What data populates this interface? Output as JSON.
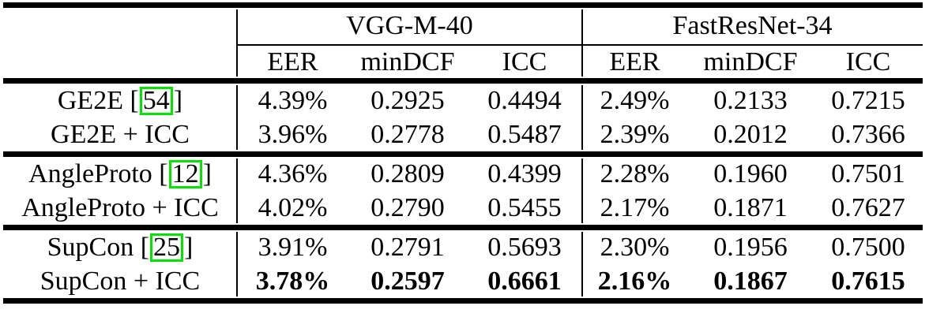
{
  "colors": {
    "background": "#FFFFFF",
    "text": "#000000",
    "rule": "#000000",
    "cite_box_border": "#00E400"
  },
  "table": {
    "column_groups": [
      {
        "label": "VGG-M-40",
        "sub_headers": [
          "EER",
          "minDCF",
          "ICC"
        ]
      },
      {
        "label": "FastResNet-34",
        "sub_headers": [
          "EER",
          "minDCF",
          "ICC"
        ]
      }
    ],
    "sections": [
      {
        "rows": [
          {
            "label_prefix": "GE2E [",
            "cite": "54",
            "label_suffix": "]",
            "values_bold": false,
            "values": [
              "4.39%",
              "0.2925",
              "0.4494",
              "2.49%",
              "0.2133",
              "0.7215"
            ]
          },
          {
            "label_prefix": "GE2E + ICC",
            "cite": null,
            "label_suffix": "",
            "values_bold": false,
            "values": [
              "3.96%",
              "0.2778",
              "0.5487",
              "2.39%",
              "0.2012",
              "0.7366"
            ]
          }
        ]
      },
      {
        "rows": [
          {
            "label_prefix": "AngleProto [",
            "cite": "12",
            "label_suffix": "]",
            "values_bold": false,
            "values": [
              "4.36%",
              "0.2809",
              "0.4399",
              "2.28%",
              "0.1960",
              "0.7501"
            ]
          },
          {
            "label_prefix": "AngleProto + ICC",
            "cite": null,
            "label_suffix": "",
            "values_bold": false,
            "values": [
              "4.02%",
              "0.2790",
              "0.5455",
              "2.17%",
              "0.1871",
              "0.7627"
            ]
          }
        ]
      },
      {
        "rows": [
          {
            "label_prefix": "SupCon [",
            "cite": "25",
            "label_suffix": "]",
            "values_bold": false,
            "values": [
              "3.91%",
              "0.2791",
              "0.5693",
              "2.30%",
              "0.1956",
              "0.7500"
            ]
          },
          {
            "label_prefix": "SupCon + ICC",
            "cite": null,
            "label_suffix": "",
            "values_bold": true,
            "values": [
              "3.78%",
              "0.2597",
              "0.6661",
              "2.16%",
              "0.1867",
              "0.7615"
            ]
          }
        ]
      }
    ]
  }
}
